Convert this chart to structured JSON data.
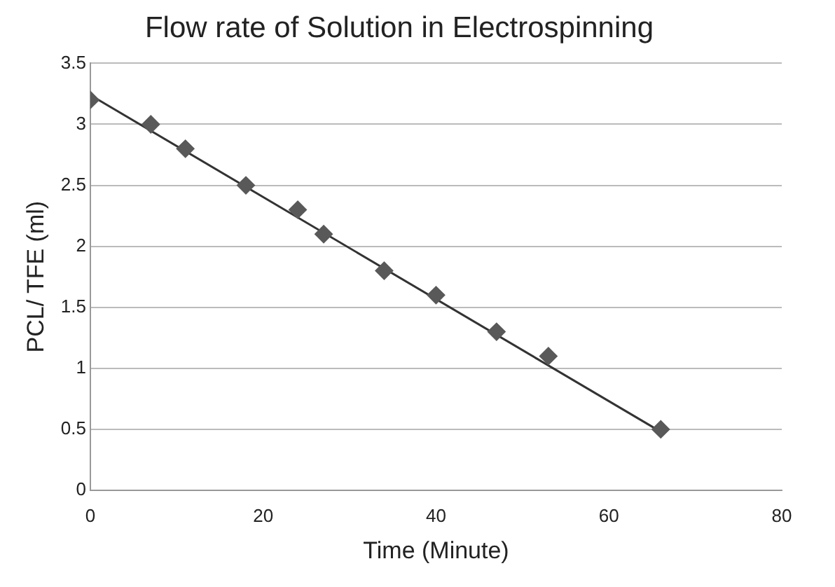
{
  "chart_data": {
    "type": "scatter",
    "title": "Flow rate of Solution in Electrospinning",
    "xlabel": "Time (Minute)",
    "ylabel": "PCL/ TFE (ml)",
    "series": [
      {
        "type": "scatter",
        "color": "#595959",
        "marker": "diamond",
        "x": [
          0,
          7,
          11,
          18,
          24,
          27,
          34,
          40,
          47,
          53,
          66
        ],
        "values": [
          3.2,
          3.0,
          2.8,
          2.5,
          2.3,
          2.1,
          1.8,
          1.6,
          1.3,
          1.1,
          0.5
        ]
      },
      {
        "type": "line",
        "color": "#333333",
        "marker": "none",
        "line_style": "solid",
        "x": [
          0,
          66
        ],
        "values": [
          3.24,
          0.48
        ]
      }
    ],
    "xlim": [
      0,
      80
    ],
    "xticks": [
      0,
      20,
      40,
      60,
      80
    ],
    "ylim": [
      0,
      3.5
    ],
    "yticks": [
      0,
      0.5,
      1,
      1.5,
      2,
      2.5,
      3,
      3.5
    ],
    "grid": "y",
    "legend": false
  }
}
